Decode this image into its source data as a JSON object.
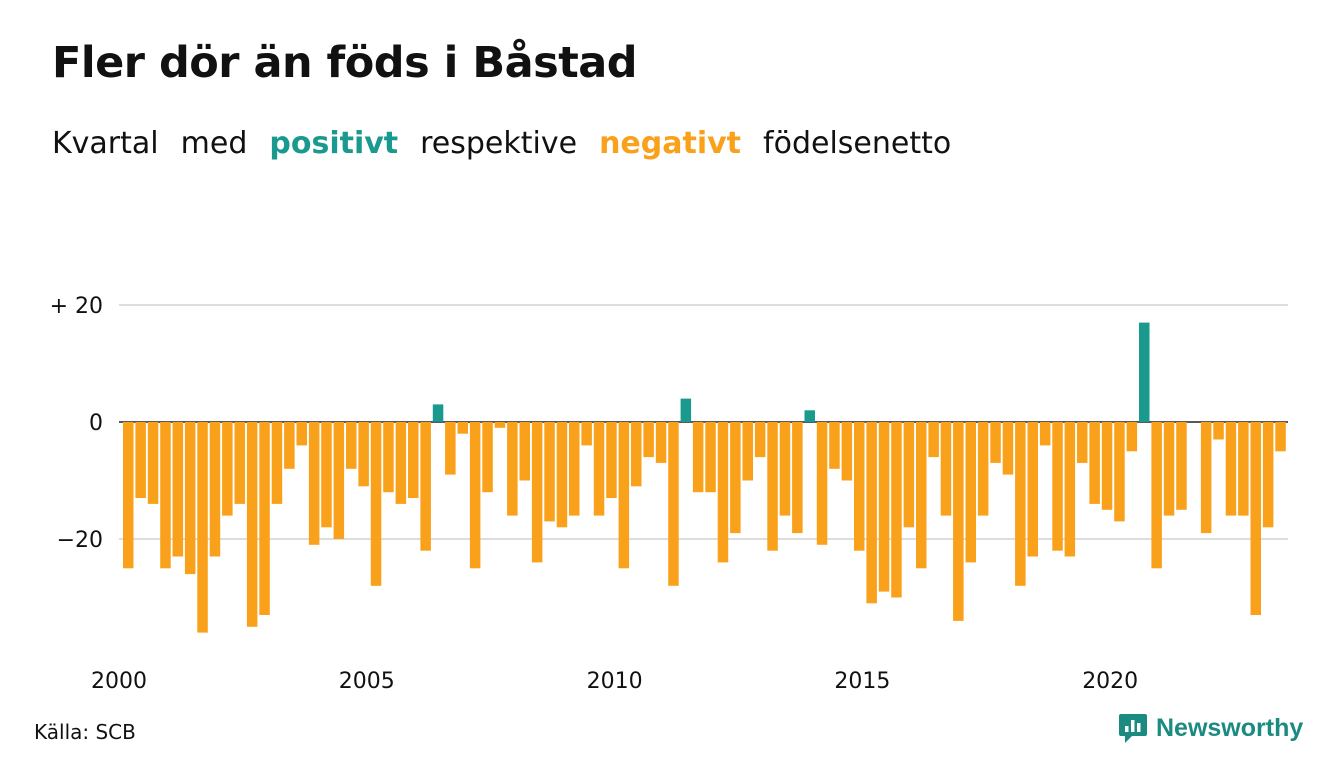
{
  "title": "Fler dör än föds i Båstad",
  "subtitle": {
    "w1": "Kvartal",
    "w2": "med",
    "positive": "positivt",
    "w3": "respektive",
    "negative": "negativt",
    "w4": "födelsenetto"
  },
  "source": "Källa: SCB",
  "brand": {
    "name": "Newsworthy",
    "icon": "newsworthy-logo-icon"
  },
  "colors": {
    "positive": "#1a998e",
    "negative": "#f9a11b",
    "grid": "#dddddd",
    "text": "#111111"
  },
  "chart_data": {
    "type": "bar",
    "x_start": "2000 Q1",
    "ylim": [
      -37,
      22
    ],
    "yticks": [
      {
        "value": 20,
        "label": "+ 20"
      },
      {
        "value": 0,
        "label": "0"
      },
      {
        "value": -20,
        "label": "−20"
      }
    ],
    "xticks": [
      {
        "year": 2000,
        "label": "2000"
      },
      {
        "year": 2005,
        "label": "2005"
      },
      {
        "year": 2010,
        "label": "2010"
      },
      {
        "year": 2015,
        "label": "2015"
      },
      {
        "year": 2020,
        "label": "2020"
      }
    ],
    "grid": true,
    "values": [
      -25,
      -13,
      -14,
      -25,
      -23,
      -26,
      -36,
      -23,
      -16,
      -14,
      -35,
      -33,
      -14,
      -8,
      -4,
      -21,
      -18,
      -20,
      -8,
      -11,
      -28,
      -12,
      -14,
      -13,
      -22,
      3,
      -9,
      -2,
      -25,
      -12,
      -1,
      -16,
      -10,
      -24,
      -17,
      -18,
      -16,
      -4,
      -16,
      -13,
      -25,
      -11,
      -6,
      -7,
      -28,
      4,
      -12,
      -12,
      -24,
      -19,
      -10,
      -6,
      -22,
      -16,
      -19,
      2,
      -21,
      -8,
      -10,
      -22,
      -31,
      -29,
      -30,
      -18,
      -25,
      -6,
      -16,
      -34,
      -24,
      -16,
      -7,
      -9,
      -28,
      -23,
      -4,
      -22,
      -23,
      -7,
      -14,
      -15,
      -17,
      -5,
      17,
      -25,
      -16,
      -15,
      0,
      -19,
      -3,
      -16,
      -16,
      -33,
      -18,
      -5
    ]
  }
}
